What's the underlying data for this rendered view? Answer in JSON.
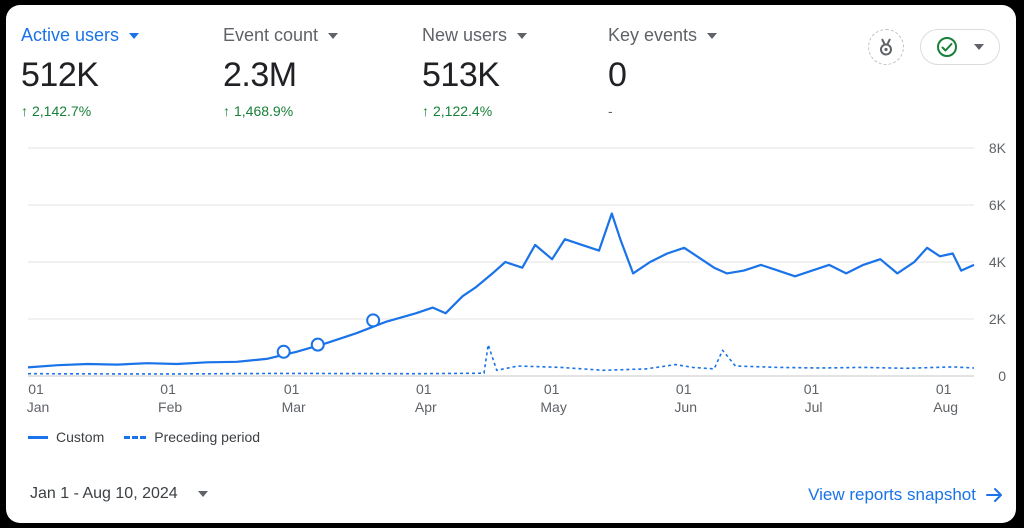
{
  "metrics": [
    {
      "label": "Active users",
      "value": "512K",
      "change": "2,142.7%",
      "direction": "up"
    },
    {
      "label": "Event count",
      "value": "2.3M",
      "change": "1,468.9%",
      "direction": "up"
    },
    {
      "label": "New users",
      "value": "513K",
      "change": "2,122.4%",
      "direction": "up"
    },
    {
      "label": "Key events",
      "value": "0",
      "change": "-",
      "direction": "none"
    }
  ],
  "icons": {
    "insights": "medal-icon",
    "status": "check-circle-icon"
  },
  "colors": {
    "primary": "#1a73e8",
    "positive": "#188038",
    "grid": "#e0e0e0",
    "text": "#202124"
  },
  "legend": {
    "solid": "Custom",
    "dashed": "Preceding period"
  },
  "footer": {
    "date_range": "Jan 1 - Aug 10, 2024",
    "link": "View reports snapshot"
  },
  "chart_data": {
    "type": "line",
    "x_start": "2024-01-01",
    "x_end": "2024-08-10",
    "ylim": [
      0,
      8000
    ],
    "y_ticks": [
      "0",
      "2K",
      "4K",
      "6K",
      "8K"
    ],
    "x_ticks": [
      {
        "day": "01",
        "month": "Jan"
      },
      {
        "day": "01",
        "month": "Feb"
      },
      {
        "day": "01",
        "month": "Mar"
      },
      {
        "day": "01",
        "month": "Apr"
      },
      {
        "day": "01",
        "month": "May"
      },
      {
        "day": "01",
        "month": "Jun"
      },
      {
        "day": "01",
        "month": "Jul"
      },
      {
        "day": "01",
        "month": "Aug"
      }
    ],
    "series": [
      {
        "name": "Custom",
        "style": "solid",
        "points": [
          [
            "2024-01-01",
            300
          ],
          [
            "2024-01-08",
            380
          ],
          [
            "2024-01-15",
            420
          ],
          [
            "2024-01-22",
            400
          ],
          [
            "2024-01-29",
            450
          ],
          [
            "2024-02-05",
            420
          ],
          [
            "2024-02-12",
            480
          ],
          [
            "2024-02-19",
            500
          ],
          [
            "2024-02-26",
            600
          ],
          [
            "2024-03-04",
            850
          ],
          [
            "2024-03-11",
            1150
          ],
          [
            "2024-03-18",
            1500
          ],
          [
            "2024-03-25",
            1900
          ],
          [
            "2024-04-01",
            2200
          ],
          [
            "2024-04-05",
            2400
          ],
          [
            "2024-04-08",
            2200
          ],
          [
            "2024-04-12",
            2800
          ],
          [
            "2024-04-15",
            3100
          ],
          [
            "2024-04-19",
            3600
          ],
          [
            "2024-04-22",
            4000
          ],
          [
            "2024-04-26",
            3800
          ],
          [
            "2024-04-29",
            4600
          ],
          [
            "2024-05-03",
            4100
          ],
          [
            "2024-05-06",
            4800
          ],
          [
            "2024-05-10",
            4600
          ],
          [
            "2024-05-14",
            4400
          ],
          [
            "2024-05-17",
            5700
          ],
          [
            "2024-05-19",
            4800
          ],
          [
            "2024-05-22",
            3600
          ],
          [
            "2024-05-26",
            4000
          ],
          [
            "2024-05-30",
            4300
          ],
          [
            "2024-06-03",
            4500
          ],
          [
            "2024-06-06",
            4200
          ],
          [
            "2024-06-10",
            3800
          ],
          [
            "2024-06-13",
            3600
          ],
          [
            "2024-06-17",
            3700
          ],
          [
            "2024-06-21",
            3900
          ],
          [
            "2024-06-25",
            3700
          ],
          [
            "2024-06-29",
            3500
          ],
          [
            "2024-07-03",
            3700
          ],
          [
            "2024-07-07",
            3900
          ],
          [
            "2024-07-11",
            3600
          ],
          [
            "2024-07-15",
            3900
          ],
          [
            "2024-07-19",
            4100
          ],
          [
            "2024-07-23",
            3600
          ],
          [
            "2024-07-27",
            4000
          ],
          [
            "2024-07-30",
            4500
          ],
          [
            "2024-08-02",
            4200
          ],
          [
            "2024-08-05",
            4300
          ],
          [
            "2024-08-07",
            3700
          ],
          [
            "2024-08-10",
            3900
          ]
        ],
        "markers": [
          [
            "2024-03-01",
            850
          ],
          [
            "2024-03-09",
            1100
          ],
          [
            "2024-03-22",
            1950
          ]
        ]
      },
      {
        "name": "Preceding period",
        "style": "dashed",
        "points": [
          [
            "2024-01-01",
            80
          ],
          [
            "2024-02-01",
            70
          ],
          [
            "2024-03-01",
            90
          ],
          [
            "2024-04-01",
            80
          ],
          [
            "2024-04-17",
            100
          ],
          [
            "2024-04-18",
            1100
          ],
          [
            "2024-04-20",
            200
          ],
          [
            "2024-04-25",
            350
          ],
          [
            "2024-05-05",
            300
          ],
          [
            "2024-05-15",
            200
          ],
          [
            "2024-05-25",
            250
          ],
          [
            "2024-06-01",
            400
          ],
          [
            "2024-06-05",
            300
          ],
          [
            "2024-06-10",
            250
          ],
          [
            "2024-06-12",
            900
          ],
          [
            "2024-06-15",
            350
          ],
          [
            "2024-06-25",
            300
          ],
          [
            "2024-07-05",
            280
          ],
          [
            "2024-07-15",
            300
          ],
          [
            "2024-07-25",
            270
          ],
          [
            "2024-08-05",
            320
          ],
          [
            "2024-08-10",
            280
          ]
        ]
      }
    ]
  }
}
